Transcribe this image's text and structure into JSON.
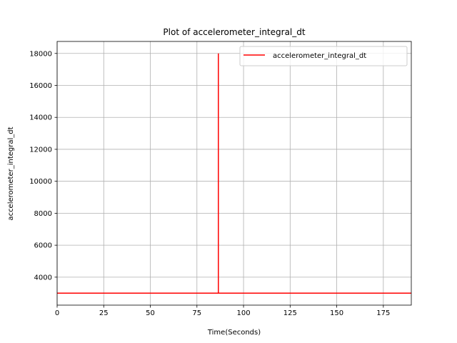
{
  "chart_data": {
    "type": "line",
    "title": "Plot of accelerometer_integral_dt",
    "xlabel": "Time(Seconds)",
    "ylabel": "accelerometer_integral_dt",
    "xlim": [
      0,
      190
    ],
    "ylim": [
      2250,
      18750
    ],
    "xticks": [
      0,
      25,
      50,
      75,
      100,
      125,
      150,
      175
    ],
    "yticks": [
      4000,
      6000,
      8000,
      10000,
      12000,
      14000,
      16000,
      18000
    ],
    "grid": true,
    "legend_position": "upper right",
    "series": [
      {
        "name": "accelerometer_integral_dt",
        "color": "#ff0000",
        "x": [
          0,
          86.5,
          86.5,
          86.5,
          190
        ],
        "y": [
          3000,
          3000,
          18000,
          3000,
          3000
        ]
      }
    ]
  }
}
